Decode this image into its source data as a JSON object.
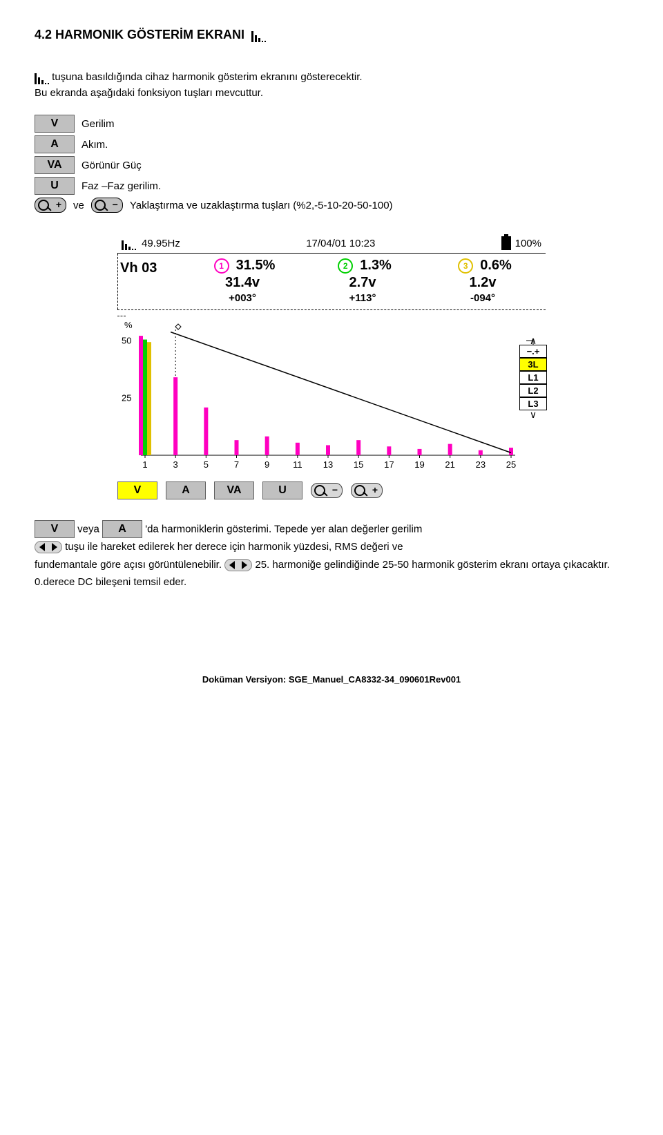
{
  "heading": "4.2 HARMONIK GÖSTERİM EKRANI",
  "intro_pre": "tuşuna basıldığında cihaz harmonik gösterim ekranını gösterecektir.",
  "intro_line2": "Bu ekranda aşağıdaki fonksiyon tuşları mevcuttur.",
  "legend": {
    "v": {
      "label": "V",
      "text": "Gerilim"
    },
    "a": {
      "label": "A",
      "text": "Akım."
    },
    "va": {
      "label": "VA",
      "text": "Görünür Güç"
    },
    "u": {
      "label": "U",
      "text": "Faz –Faz gerilim."
    },
    "zoom": {
      "ve": "ve",
      "text": "Yaklaştırma ve uzaklaştırma tuşları (%2,-5-10-20-50-100)"
    }
  },
  "screenshot": {
    "header": {
      "freq": "49.95Hz",
      "datetime": "17/04/01 10:23",
      "battery": "100%"
    },
    "corner_label": "Vh 03",
    "cols": [
      {
        "n": "1",
        "color": "#ff00c0",
        "pct": "31.5%",
        "volt": "31.4v",
        "deg": "+003°"
      },
      {
        "n": "2",
        "color": "#00d000",
        "pct": "1.3%",
        "volt": "2.7v",
        "deg": "+113°"
      },
      {
        "n": "3",
        "color": "#e0c000",
        "pct": "0.6%",
        "volt": "1.2v",
        "deg": "-094°"
      }
    ],
    "yaxis_label": "%",
    "yticks": [
      "50",
      "25"
    ],
    "xticks": [
      "1",
      "3",
      "5",
      "7",
      "9",
      "11",
      "13",
      "15",
      "17",
      "19",
      "21",
      "23",
      "25"
    ],
    "side": {
      "top": "−.+",
      "items": [
        "3L",
        "L1",
        "L2",
        "L3"
      ]
    },
    "chart": {
      "bar_groups": [
        {
          "x": 1,
          "bars": [
            {
              "h": 0.95,
              "c": "#ff00c0"
            },
            {
              "h": 0.92,
              "c": "#00d000"
            },
            {
              "h": 0.9,
              "c": "#e0c000"
            }
          ]
        },
        {
          "x": 3,
          "bars": [
            {
              "h": 0.62,
              "c": "#ff00c0"
            }
          ]
        },
        {
          "x": 5,
          "bars": [
            {
              "h": 0.38,
              "c": "#ff00c0"
            }
          ]
        },
        {
          "x": 7,
          "bars": [
            {
              "h": 0.12,
              "c": "#ff00c0"
            }
          ]
        },
        {
          "x": 9,
          "bars": [
            {
              "h": 0.15,
              "c": "#ff00c0"
            }
          ]
        },
        {
          "x": 11,
          "bars": [
            {
              "h": 0.1,
              "c": "#ff00c0"
            }
          ]
        },
        {
          "x": 13,
          "bars": [
            {
              "h": 0.08,
              "c": "#ff00c0"
            }
          ]
        },
        {
          "x": 15,
          "bars": [
            {
              "h": 0.12,
              "c": "#ff00c0"
            }
          ]
        },
        {
          "x": 17,
          "bars": [
            {
              "h": 0.07,
              "c": "#ff00c0"
            }
          ]
        },
        {
          "x": 19,
          "bars": [
            {
              "h": 0.05,
              "c": "#ff00c0"
            }
          ]
        },
        {
          "x": 21,
          "bars": [
            {
              "h": 0.09,
              "c": "#ff00c0"
            }
          ]
        },
        {
          "x": 23,
          "bars": [
            {
              "h": 0.04,
              "c": "#ff00c0"
            }
          ]
        },
        {
          "x": 25,
          "bars": [
            {
              "h": 0.06,
              "c": "#ff00c0"
            }
          ]
        }
      ],
      "diag_line": {
        "x1": 0.07,
        "y1": 0.02,
        "x2": 1.0,
        "y2": 0.98
      }
    },
    "tabs": {
      "v": "V",
      "a": "A",
      "va": "VA",
      "u": "U"
    }
  },
  "bottom": {
    "veya": "veya",
    "t1": "'da harmoniklerin gösterimi. Tepede yer alan değerler gerilim",
    "t2": "tuşu ile hareket edilerek her derece için harmonik yüzdesi, RMS değeri ve",
    "t3": "fundemantale göre açısı görüntülenebilir.",
    "t4": "25. harmoniğe gelindiğinde 25-50 harmonik gösterim ekranı ortaya çıkacaktır. 0.derece DC bileşeni temsil eder."
  },
  "footer": "Doküman Versiyon: SGE_Manuel_CA8332-34_090601Rev001"
}
